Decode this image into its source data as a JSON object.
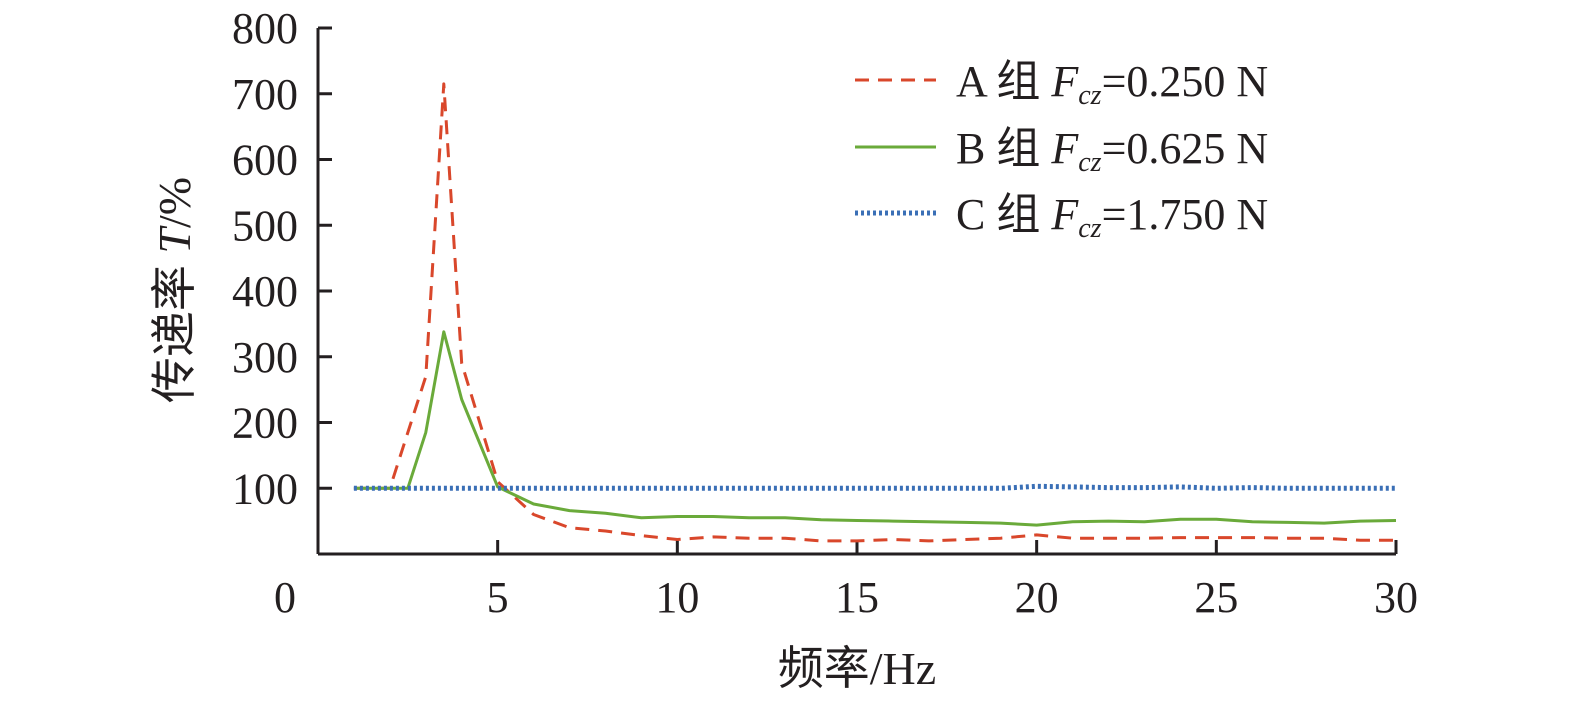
{
  "chart_data": {
    "type": "line",
    "xlabel": "频率/Hz",
    "ylabel": "传递率 T/%",
    "ylabel_parts": {
      "prefix": "传递率 ",
      "var": "T",
      "suffix": "/%"
    },
    "xlim": [
      0,
      30
    ],
    "ylim": [
      0,
      800
    ],
    "x_ticks": [
      0,
      5,
      10,
      15,
      20,
      25,
      30
    ],
    "y_ticks": [
      100,
      200,
      300,
      400,
      500,
      600,
      700,
      800
    ],
    "x_zero_label": "0",
    "legend_position": "top-right",
    "grid": false,
    "series": [
      {
        "name": "A 组 Fcz=0.250 N",
        "label_parts": {
          "prefix": "A 组 ",
          "var": "F",
          "sub": "cz",
          "suffix": "=0.250 N"
        },
        "color": "#d9472b",
        "style": "dashed",
        "x": [
          1,
          2,
          3,
          3.5,
          4,
          5,
          6,
          7,
          8,
          9,
          10,
          11,
          12,
          13,
          14,
          15,
          16,
          17,
          18,
          19,
          20,
          21,
          22,
          23,
          24,
          25,
          26,
          27,
          28,
          29,
          30
        ],
        "y": [
          100,
          100,
          270,
          715,
          290,
          110,
          60,
          40,
          35,
          28,
          22,
          26,
          24,
          24,
          20,
          20,
          22,
          20,
          22,
          24,
          29,
          24,
          24,
          24,
          25,
          25,
          25,
          24,
          24,
          21,
          21
        ]
      },
      {
        "name": "B 组 Fcz=0.625 N",
        "label_parts": {
          "prefix": "B 组 ",
          "var": "F",
          "sub": "cz",
          "suffix": "=0.625 N"
        },
        "color": "#6aaa3a",
        "style": "solid",
        "x": [
          1,
          2.5,
          3,
          3.5,
          4,
          5,
          6,
          7,
          8,
          9,
          10,
          11,
          12,
          13,
          14,
          15,
          16,
          17,
          18,
          19,
          20,
          21,
          22,
          23,
          24,
          25,
          26,
          27,
          28,
          29,
          30
        ],
        "y": [
          100,
          100,
          185,
          338,
          235,
          102,
          76,
          66,
          62,
          55,
          57,
          57,
          55,
          55,
          52,
          51,
          50,
          49,
          48,
          47,
          44,
          49,
          50,
          49,
          53,
          53,
          49,
          48,
          47,
          50,
          51
        ]
      },
      {
        "name": "C 组 Fcz=1.750 N",
        "label_parts": {
          "prefix": "C 组 ",
          "var": "F",
          "sub": "cz",
          "suffix": "=1.750 N"
        },
        "color": "#3a6fb6",
        "style": "dotted",
        "x": [
          1,
          2,
          3,
          4,
          5,
          6,
          7,
          8,
          9,
          10,
          11,
          12,
          13,
          14,
          15,
          16,
          17,
          18,
          19,
          20,
          21,
          22,
          23,
          24,
          25,
          26,
          27,
          28,
          29,
          30
        ],
        "y": [
          100,
          100,
          100,
          100,
          100,
          100,
          100,
          100,
          100,
          100,
          100,
          100,
          100,
          100,
          100,
          100,
          100,
          100,
          100,
          103,
          102,
          101,
          101,
          102,
          100,
          101,
          100,
          100,
          100,
          100
        ]
      }
    ]
  }
}
